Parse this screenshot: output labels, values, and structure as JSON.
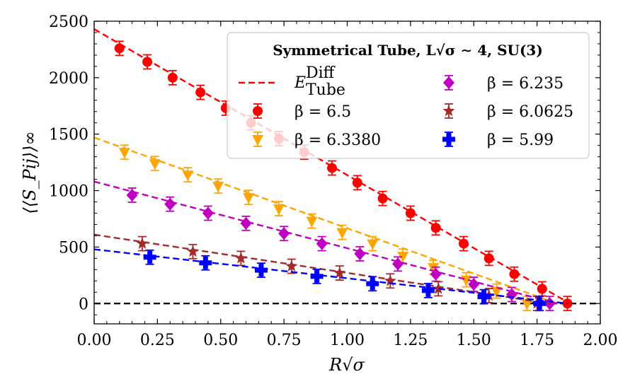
{
  "chart_data": {
    "type": "scatter",
    "title": "",
    "xlabel": "R√σ",
    "ylabel": "⟨⟨S_Pij⟩⟩∞",
    "xlim": [
      0.0,
      2.0
    ],
    "ylim": [
      -180,
      2500
    ],
    "xticks": [
      "0.00",
      "0.25",
      "0.50",
      "0.75",
      "1.00",
      "1.25",
      "1.50",
      "1.75",
      "2.00"
    ],
    "yticks": [
      "0",
      "500",
      "1000",
      "1500",
      "2000",
      "2500"
    ],
    "legend": {
      "title": "Symmetrical Tube, L√σ ∼ 4, SU(3)",
      "position": "top-right",
      "fit_label": "E",
      "fit_label_sup": "Diff",
      "fit_label_sub": "Tube"
    },
    "zero_line": true,
    "series": [
      {
        "name": "β = 6.5",
        "color": "#ff0000",
        "marker": "circle",
        "fit": {
          "x0": 0.0,
          "y0": 2430,
          "x1": 1.88,
          "y1": 0
        },
        "points": [
          {
            "x": 0.1,
            "y": 2260
          },
          {
            "x": 0.21,
            "y": 2140
          },
          {
            "x": 0.31,
            "y": 2000
          },
          {
            "x": 0.42,
            "y": 1870
          },
          {
            "x": 0.52,
            "y": 1730
          },
          {
            "x": 0.62,
            "y": 1600
          },
          {
            "x": 0.73,
            "y": 1460
          },
          {
            "x": 0.83,
            "y": 1340
          },
          {
            "x": 0.94,
            "y": 1200
          },
          {
            "x": 1.04,
            "y": 1070
          },
          {
            "x": 1.14,
            "y": 930
          },
          {
            "x": 1.25,
            "y": 800
          },
          {
            "x": 1.35,
            "y": 670
          },
          {
            "x": 1.46,
            "y": 530
          },
          {
            "x": 1.56,
            "y": 400
          },
          {
            "x": 1.66,
            "y": 260
          },
          {
            "x": 1.77,
            "y": 130
          },
          {
            "x": 1.87,
            "y": 0
          }
        ]
      },
      {
        "name": "β = 6.3380",
        "color": "#ffa500",
        "marker": "triangle-down",
        "fit": {
          "x0": 0.0,
          "y0": 1470,
          "x1": 1.83,
          "y1": 0
        },
        "points": [
          {
            "x": 0.12,
            "y": 1340
          },
          {
            "x": 0.24,
            "y": 1240
          },
          {
            "x": 0.37,
            "y": 1140
          },
          {
            "x": 0.49,
            "y": 1040
          },
          {
            "x": 0.61,
            "y": 940
          },
          {
            "x": 0.73,
            "y": 840
          },
          {
            "x": 0.86,
            "y": 730
          },
          {
            "x": 0.98,
            "y": 630
          },
          {
            "x": 1.1,
            "y": 530
          },
          {
            "x": 1.22,
            "y": 420
          },
          {
            "x": 1.34,
            "y": 320
          },
          {
            "x": 1.47,
            "y": 210
          },
          {
            "x": 1.59,
            "y": 110
          },
          {
            "x": 1.71,
            "y": 0
          }
        ]
      },
      {
        "name": "β = 6.235",
        "color": "#c000c0",
        "marker": "diamond",
        "fit": {
          "x0": 0.0,
          "y0": 1080,
          "x1": 1.83,
          "y1": 0
        },
        "points": [
          {
            "x": 0.15,
            "y": 960
          },
          {
            "x": 0.3,
            "y": 880
          },
          {
            "x": 0.45,
            "y": 800
          },
          {
            "x": 0.6,
            "y": 710
          },
          {
            "x": 0.75,
            "y": 620
          },
          {
            "x": 0.9,
            "y": 530
          },
          {
            "x": 1.05,
            "y": 440
          },
          {
            "x": 1.2,
            "y": 350
          },
          {
            "x": 1.35,
            "y": 260
          },
          {
            "x": 1.5,
            "y": 170
          },
          {
            "x": 1.65,
            "y": 80
          },
          {
            "x": 1.8,
            "y": 0
          }
        ]
      },
      {
        "name": "β = 6.0625",
        "color": "#a52a2a",
        "marker": "star",
        "fit": {
          "x0": 0.0,
          "y0": 610,
          "x1": 1.8,
          "y1": 0
        },
        "points": [
          {
            "x": 0.19,
            "y": 530
          },
          {
            "x": 0.39,
            "y": 460
          },
          {
            "x": 0.58,
            "y": 400
          },
          {
            "x": 0.78,
            "y": 330
          },
          {
            "x": 0.97,
            "y": 270
          },
          {
            "x": 1.17,
            "y": 200
          },
          {
            "x": 1.36,
            "y": 130
          },
          {
            "x": 1.56,
            "y": 70
          },
          {
            "x": 1.75,
            "y": 0
          }
        ]
      },
      {
        "name": "β = 5.99",
        "color": "#0000ff",
        "marker": "plus",
        "fit": {
          "x0": 0.0,
          "y0": 480,
          "x1": 1.87,
          "y1": 0
        },
        "points": [
          {
            "x": 0.22,
            "y": 410
          },
          {
            "x": 0.44,
            "y": 360
          },
          {
            "x": 0.66,
            "y": 295
          },
          {
            "x": 0.88,
            "y": 240
          },
          {
            "x": 1.1,
            "y": 175
          },
          {
            "x": 1.32,
            "y": 115
          },
          {
            "x": 1.54,
            "y": 60
          },
          {
            "x": 1.76,
            "y": 0
          }
        ]
      }
    ]
  }
}
